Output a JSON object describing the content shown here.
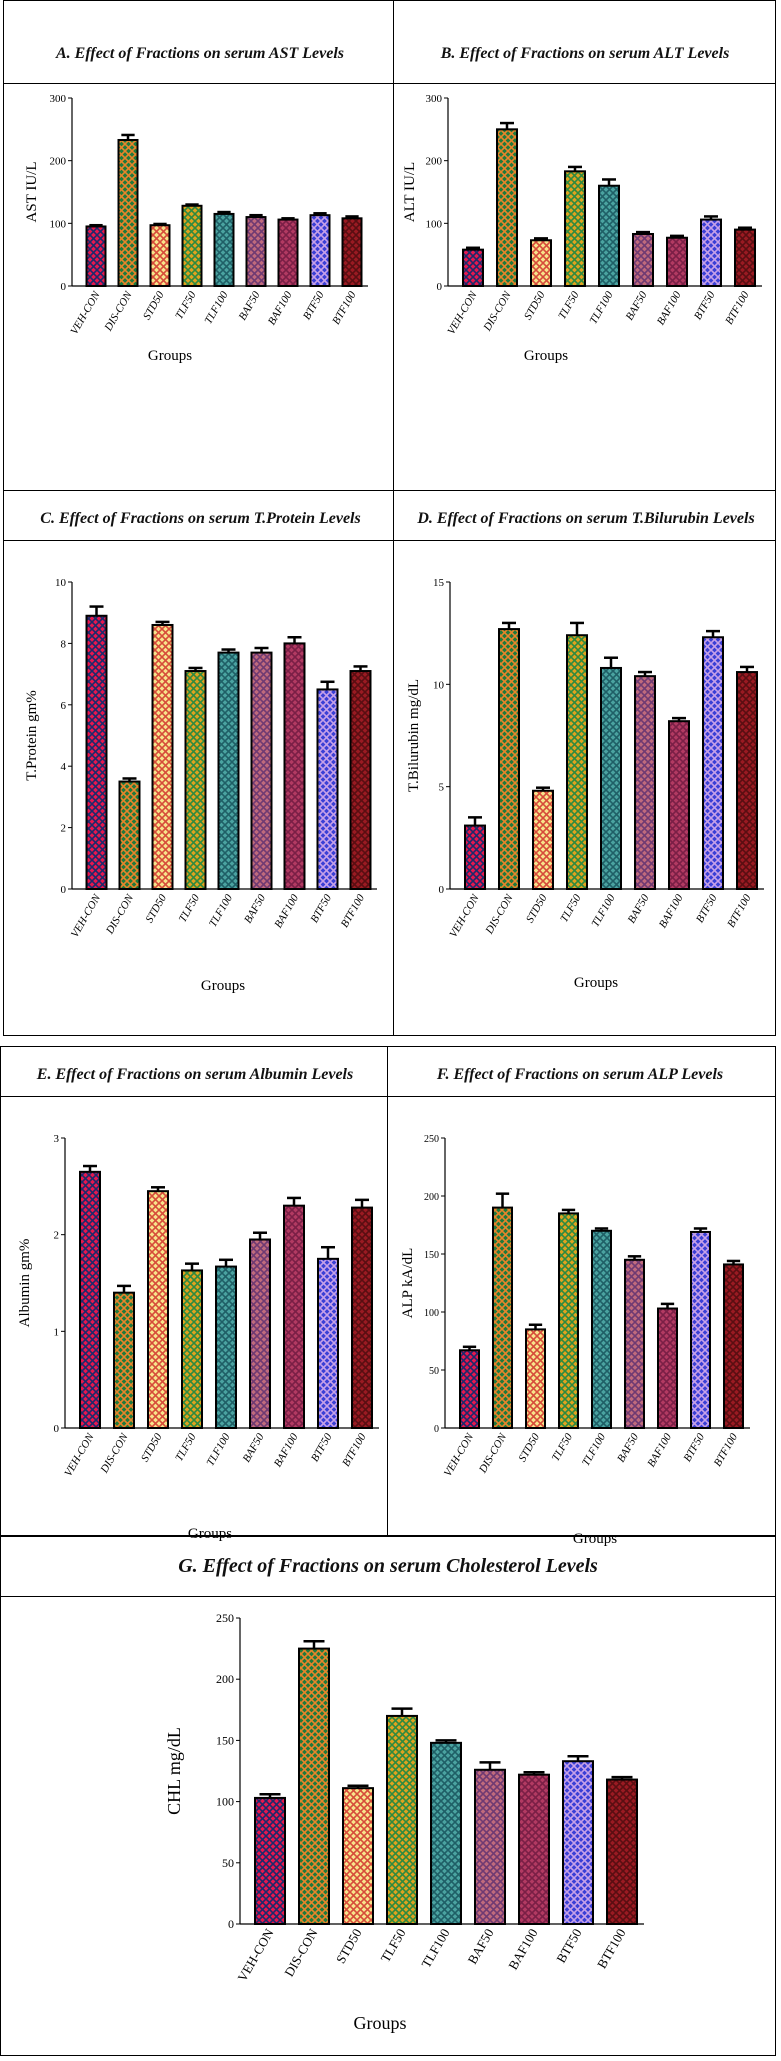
{
  "colors": {
    "VEH-CON": {
      "bg": "#e8174e",
      "fg": "#1d2a6b"
    },
    "DIS-CON": {
      "bg": "#1f7a3c",
      "fg": "#e9842a"
    },
    "STD50": {
      "bg": "#f7e38a",
      "fg": "#d64b3a"
    },
    "TLF50": {
      "bg": "#e0a21f",
      "fg": "#2f8a3f"
    },
    "TLF100": {
      "bg": "#4aa3a0",
      "fg": "#1f5f66"
    },
    "BAF50": {
      "bg": "#c06a7c",
      "fg": "#6f3a72"
    },
    "BAF100": {
      "bg": "#b23a62",
      "fg": "#7a1f46"
    },
    "BTF50": {
      "bg": "#3a3fd6",
      "fg": "#c6a0e8"
    },
    "BTF100": {
      "bg": "#9a1a22",
      "fg": "#5a0e12"
    }
  },
  "chart_data": [
    {
      "type": "bar",
      "title": "A. Effect of Fractions on serum AST Levels",
      "xlabel": "Groups",
      "ylabel": "AST IU/L",
      "ylim": [
        0,
        300
      ],
      "yticks": [
        "0",
        "100",
        "200",
        "300"
      ],
      "categories": [
        "VEH-CON",
        "DIS-CON",
        "STD50",
        "TLF50",
        "TLF100",
        "BAF50",
        "BAF100",
        "BTF50",
        "BTF100"
      ],
      "values": [
        95,
        233,
        97,
        128,
        115,
        110,
        106,
        113,
        108
      ],
      "errors": [
        2,
        8,
        2,
        2,
        3,
        3,
        2,
        3,
        3
      ]
    },
    {
      "type": "bar",
      "title": "B. Effect of Fractions on serum ALT Levels",
      "xlabel": "Groups",
      "ylabel": "ALT IU/L",
      "ylim": [
        0,
        300
      ],
      "yticks": [
        "0",
        "100",
        "200",
        "300"
      ],
      "categories": [
        "VEH-CON",
        "DIS-CON",
        "STD50",
        "TLF50",
        "TLF100",
        "BAF50",
        "BAF100",
        "BTF50",
        "BTF100"
      ],
      "values": [
        58,
        250,
        73,
        183,
        160,
        83,
        77,
        106,
        90
      ],
      "errors": [
        3,
        10,
        3,
        7,
        10,
        3,
        3,
        5,
        3
      ]
    },
    {
      "type": "bar",
      "title": "C. Effect of Fractions on serum T.Protein Levels",
      "xlabel": "Groups",
      "ylabel": "T.Protein gm%",
      "ylim": [
        0,
        10
      ],
      "yticks": [
        "0",
        "2",
        "4",
        "6",
        "8",
        "10"
      ],
      "categories": [
        "VEH-CON",
        "DIS-CON",
        "STD50",
        "TLF50",
        "TLF100",
        "BAF50",
        "BAF100",
        "BTF50",
        "BTF100"
      ],
      "values": [
        8.9,
        3.5,
        8.6,
        7.1,
        7.7,
        7.7,
        8.0,
        6.5,
        7.1
      ],
      "errors": [
        0.3,
        0.1,
        0.1,
        0.1,
        0.1,
        0.15,
        0.2,
        0.25,
        0.15
      ]
    },
    {
      "type": "bar",
      "title": "D. Effect of Fractions on serum T.Bilurubin Levels",
      "xlabel": "Groups",
      "ylabel": "T.Bilurubin mg/dL",
      "ylim": [
        0,
        15
      ],
      "yticks": [
        "0",
        "5",
        "10",
        "15"
      ],
      "categories": [
        "VEH-CON",
        "DIS-CON",
        "STD50",
        "TLF50",
        "TLF100",
        "BAF50",
        "BAF100",
        "BTF50",
        "BTF100"
      ],
      "values": [
        3.1,
        12.7,
        4.8,
        12.4,
        10.8,
        10.4,
        8.2,
        12.3,
        10.6
      ],
      "errors": [
        0.4,
        0.3,
        0.15,
        0.6,
        0.5,
        0.2,
        0.15,
        0.3,
        0.25
      ]
    },
    {
      "type": "bar",
      "title": "E. Effect of Fractions on serum Albumin Levels",
      "xlabel": "Groups",
      "ylabel": "Albumin gm%",
      "ylim": [
        0,
        3
      ],
      "yticks": [
        "0",
        "1",
        "2",
        "3"
      ],
      "categories": [
        "VEH-CON",
        "DIS-CON",
        "STD50",
        "TLF50",
        "TLF100",
        "BAF50",
        "BAF100",
        "BTF50",
        "BTF100"
      ],
      "values": [
        2.65,
        1.4,
        2.45,
        1.63,
        1.67,
        1.95,
        2.3,
        1.75,
        2.28
      ],
      "errors": [
        0.06,
        0.07,
        0.04,
        0.07,
        0.07,
        0.07,
        0.08,
        0.12,
        0.08
      ]
    },
    {
      "type": "bar",
      "title": "F. Effect of Fractions on serum ALP Levels",
      "xlabel": "Groups",
      "ylabel": "ALP kA/dL",
      "ylim": [
        0,
        250
      ],
      "yticks": [
        "0",
        "50",
        "100",
        "150",
        "200",
        "250"
      ],
      "categories": [
        "VEH-CON",
        "DIS-CON",
        "STD50",
        "TLF50",
        "TLF100",
        "BAF50",
        "BAF100",
        "BTF50",
        "BTF100"
      ],
      "values": [
        67,
        190,
        85,
        185,
        170,
        145,
        103,
        169,
        141
      ],
      "errors": [
        3,
        12,
        4,
        3,
        2,
        3,
        4,
        3,
        3
      ]
    },
    {
      "type": "bar",
      "title": "G. Effect of Fractions on serum Cholesterol Levels",
      "xlabel": "Groups",
      "ylabel": "CHL mg/dL",
      "ylim": [
        0,
        250
      ],
      "yticks": [
        "0",
        "50",
        "100",
        "150",
        "200",
        "250"
      ],
      "categories": [
        "VEH-CON",
        "DIS-CON",
        "STD50",
        "TLF50",
        "TLF100",
        "BAF50",
        "BAF100",
        "BTF50",
        "BTF100"
      ],
      "values": [
        103,
        225,
        111,
        170,
        148,
        126,
        122,
        133,
        118
      ],
      "errors": [
        3,
        6,
        2,
        6,
        2,
        6,
        2,
        4,
        2
      ]
    }
  ]
}
